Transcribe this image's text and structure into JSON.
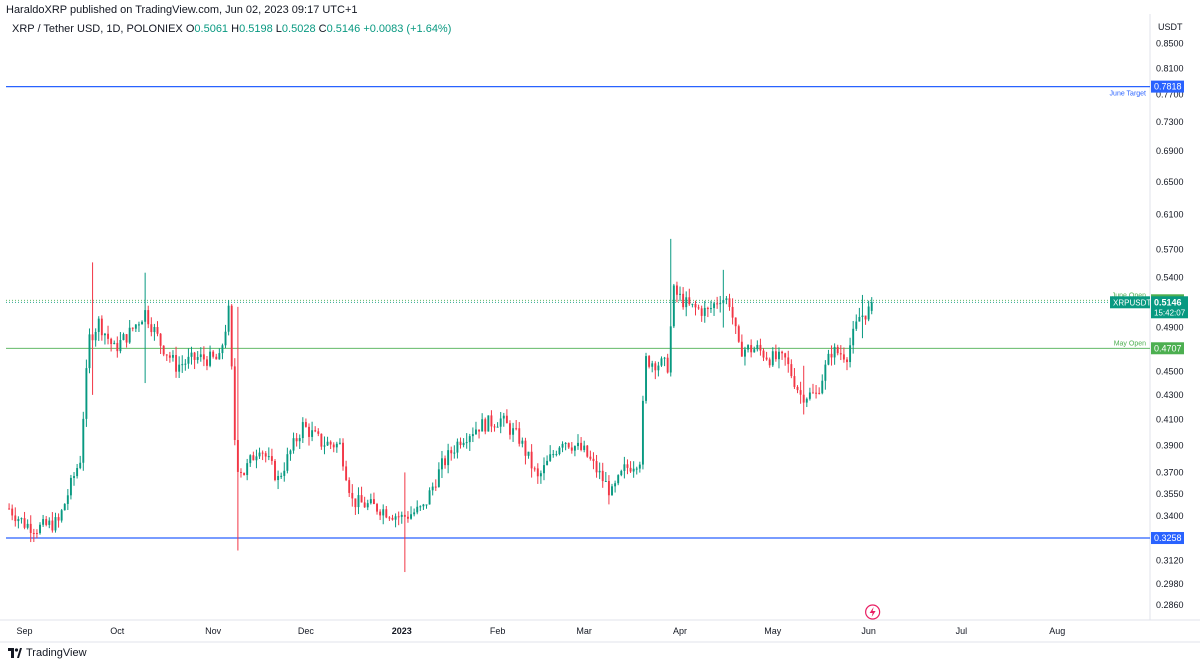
{
  "publisher_line": "HaraldoXRP published on TradingView.com, Jun 02, 2023 09:17 UTC+1",
  "legend": {
    "symbol": "XRP / Tether USD, 1D, POLONIEX",
    "o_label": "O",
    "o_value": "0.5061",
    "h_label": "H",
    "h_value": "0.5198",
    "l_label": "L",
    "l_value": "0.5028",
    "c_label": "C",
    "c_value": "0.5146",
    "change": "+0.0083 (+1.64%)"
  },
  "footer": {
    "brand": "TradingView"
  },
  "colors": {
    "up": "#089981",
    "down": "#f23645",
    "blue_line": "#2962ff",
    "green_line": "#4caf50",
    "axis_text": "#131722",
    "dashed_price": "#089981"
  },
  "chart_data": {
    "type": "candlestick",
    "symbol": "XRPUSDT",
    "currency": "USDT",
    "y_scale": "log",
    "ylim": [
      0.279,
      0.9
    ],
    "y_ticks": [
      "0.8500",
      "0.8100",
      "0.7700",
      "0.7300",
      "0.6900",
      "0.6500",
      "0.6100",
      "0.5700",
      "0.5400",
      "0.4900",
      "0.4500",
      "0.4300",
      "0.4100",
      "0.3900",
      "0.3700",
      "0.3550",
      "0.3400",
      "0.3120",
      "0.2980",
      "0.2860"
    ],
    "x_tick_labels": [
      "Sep",
      "Oct",
      "Nov",
      "Dec",
      "2023",
      "Feb",
      "Mar",
      "Apr",
      "May",
      "Jun",
      "Jul",
      "Aug"
    ],
    "x_range_start": "2022-08-26",
    "x_range_end": "2023-08-31",
    "horizontal_lines": [
      {
        "label": "June Target",
        "price": "0.7818",
        "kind": "blue"
      },
      {
        "label": "June Open",
        "price": "0.5166",
        "kind": "green_dotted"
      },
      {
        "label": "May Open",
        "price": "0.4707",
        "kind": "green"
      },
      {
        "label": "",
        "price": "0.3258",
        "kind": "blue"
      }
    ],
    "last_price": {
      "symbol": "XRPUSDT",
      "price": "0.5146",
      "countdown": "15:42:07"
    },
    "anchors": [
      [
        "2022-08-27",
        0.345
      ],
      [
        "2022-09-01",
        0.335
      ],
      [
        "2022-09-05",
        0.332
      ],
      [
        "2022-09-12",
        0.336
      ],
      [
        "2022-09-19",
        0.38
      ],
      [
        "2022-09-22",
        0.48
      ],
      [
        "2022-09-25",
        0.495
      ],
      [
        "2022-09-30",
        0.47
      ],
      [
        "2022-10-05",
        0.485
      ],
      [
        "2022-10-10",
        0.505
      ],
      [
        "2022-10-15",
        0.475
      ],
      [
        "2022-10-20",
        0.455
      ],
      [
        "2022-10-27",
        0.462
      ],
      [
        "2022-11-03",
        0.46
      ],
      [
        "2022-11-06",
        0.505
      ],
      [
        "2022-11-08",
        0.395
      ],
      [
        "2022-11-09",
        0.375
      ],
      [
        "2022-11-11",
        0.37
      ],
      [
        "2022-11-16",
        0.39
      ],
      [
        "2022-11-22",
        0.365
      ],
      [
        "2022-11-30",
        0.405
      ],
      [
        "2022-12-06",
        0.392
      ],
      [
        "2022-12-12",
        0.39
      ],
      [
        "2022-12-16",
        0.35
      ],
      [
        "2022-12-25",
        0.345
      ],
      [
        "2023-01-01",
        0.339
      ],
      [
        "2023-01-08",
        0.345
      ],
      [
        "2023-01-14",
        0.375
      ],
      [
        "2023-01-20",
        0.395
      ],
      [
        "2023-01-26",
        0.405
      ],
      [
        "2023-02-02",
        0.41
      ],
      [
        "2023-02-08",
        0.395
      ],
      [
        "2023-02-14",
        0.365
      ],
      [
        "2023-02-22",
        0.395
      ],
      [
        "2023-03-01",
        0.385
      ],
      [
        "2023-03-10",
        0.355
      ],
      [
        "2023-03-14",
        0.372
      ],
      [
        "2023-03-19",
        0.38
      ],
      [
        "2023-03-21",
        0.46
      ],
      [
        "2023-03-28",
        0.455
      ],
      [
        "2023-03-30",
        0.525
      ],
      [
        "2023-04-04",
        0.51
      ],
      [
        "2023-04-10",
        0.505
      ],
      [
        "2023-04-14",
        0.52
      ],
      [
        "2023-04-17",
        0.515
      ],
      [
        "2023-04-20",
        0.47
      ],
      [
        "2023-04-26",
        0.47
      ],
      [
        "2023-04-30",
        0.462
      ],
      [
        "2023-05-05",
        0.46
      ],
      [
        "2023-05-10",
        0.43
      ],
      [
        "2023-05-15",
        0.43
      ],
      [
        "2023-05-20",
        0.468
      ],
      [
        "2023-05-25",
        0.465
      ],
      [
        "2023-05-29",
        0.5
      ],
      [
        "2023-06-01",
        0.5063
      ],
      [
        "2023-06-02",
        0.5146
      ]
    ],
    "wick_spikes": [
      [
        "2022-09-23",
        0.556,
        0.43
      ],
      [
        "2022-10-10",
        0.545,
        0.44
      ],
      [
        "2022-11-09",
        0.51,
        0.318
      ],
      [
        "2023-01-02",
        0.37,
        0.305
      ],
      [
        "2023-03-29",
        0.582,
        0.455
      ],
      [
        "2023-04-15",
        0.548,
        0.49
      ],
      [
        "2023-05-11",
        0.455,
        0.414
      ],
      [
        "2023-05-30",
        0.522,
        0.48
      ]
    ]
  }
}
